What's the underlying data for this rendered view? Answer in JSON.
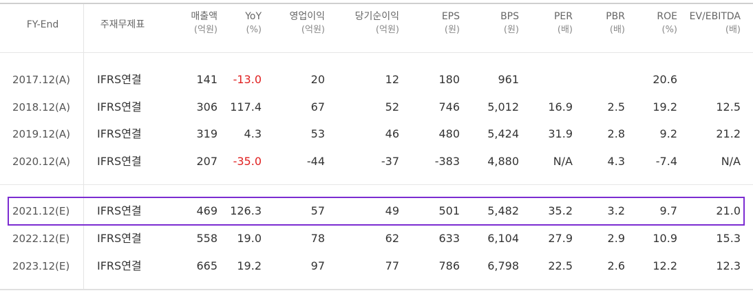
{
  "headers": [
    {
      "key": "fy_end",
      "line1": "FY-End",
      "line2": ""
    },
    {
      "key": "account",
      "line1": "주재무제표",
      "line2": ""
    },
    {
      "key": "sales",
      "line1": "매출액",
      "line2": "(억원)"
    },
    {
      "key": "yoy",
      "line1": "YoY",
      "line2": "(%)"
    },
    {
      "key": "op",
      "line1": "영업이익",
      "line2": "(억원)"
    },
    {
      "key": "net",
      "line1": "당기순이익",
      "line2": "(억원)"
    },
    {
      "key": "eps",
      "line1": "EPS",
      "line2": "(원)"
    },
    {
      "key": "bps",
      "line1": "BPS",
      "line2": "(원)"
    },
    {
      "key": "per",
      "line1": "PER",
      "line2": "(배)"
    },
    {
      "key": "pbr",
      "line1": "PBR",
      "line2": "(배)"
    },
    {
      "key": "roe",
      "line1": "ROE",
      "line2": "(%)"
    },
    {
      "key": "ev",
      "line1": "EV/EBITDA",
      "line2": "(배)"
    }
  ],
  "rows": [
    {
      "fy": "2017.12(A)",
      "acc": "IFRS연결",
      "sales": "141",
      "yoy": "-13.0",
      "op": "20",
      "net": "12",
      "eps": "180",
      "bps": "961",
      "per": "",
      "pbr": "",
      "roe": "20.6",
      "ev": ""
    },
    {
      "fy": "2018.12(A)",
      "acc": "IFRS연결",
      "sales": "306",
      "yoy": "117.4",
      "op": "67",
      "net": "52",
      "eps": "746",
      "bps": "5,012",
      "per": "16.9",
      "pbr": "2.5",
      "roe": "19.2",
      "ev": "12.5"
    },
    {
      "fy": "2019.12(A)",
      "acc": "IFRS연결",
      "sales": "319",
      "yoy": "4.3",
      "op": "53",
      "net": "46",
      "eps": "480",
      "bps": "5,424",
      "per": "31.9",
      "pbr": "2.8",
      "roe": "9.2",
      "ev": "21.2"
    },
    {
      "fy": "2020.12(A)",
      "acc": "IFRS연결",
      "sales": "207",
      "yoy": "-35.0",
      "op": "-44",
      "net": "-37",
      "eps": "-383",
      "bps": "4,880",
      "per": "N/A",
      "pbr": "4.3",
      "roe": "-7.4",
      "ev": "N/A"
    },
    {
      "fy": "2021.12(E)",
      "acc": "IFRS연결",
      "sales": "469",
      "yoy": "126.3",
      "op": "57",
      "net": "49",
      "eps": "501",
      "bps": "5,482",
      "per": "35.2",
      "pbr": "3.2",
      "roe": "9.7",
      "ev": "21.0"
    },
    {
      "fy": "2022.12(E)",
      "acc": "IFRS연결",
      "sales": "558",
      "yoy": "19.0",
      "op": "78",
      "net": "62",
      "eps": "633",
      "bps": "6,104",
      "per": "27.9",
      "pbr": "2.9",
      "roe": "10.9",
      "ev": "15.3"
    },
    {
      "fy": "2023.12(E)",
      "acc": "IFRS연결",
      "sales": "665",
      "yoy": "19.2",
      "op": "97",
      "net": "77",
      "eps": "786",
      "bps": "6,798",
      "per": "22.5",
      "pbr": "2.6",
      "roe": "12.2",
      "ev": "12.3"
    }
  ],
  "colors": {
    "negative_yoy": "#e02020",
    "highlight_border": "#7b2bd1",
    "text": "#333333"
  }
}
